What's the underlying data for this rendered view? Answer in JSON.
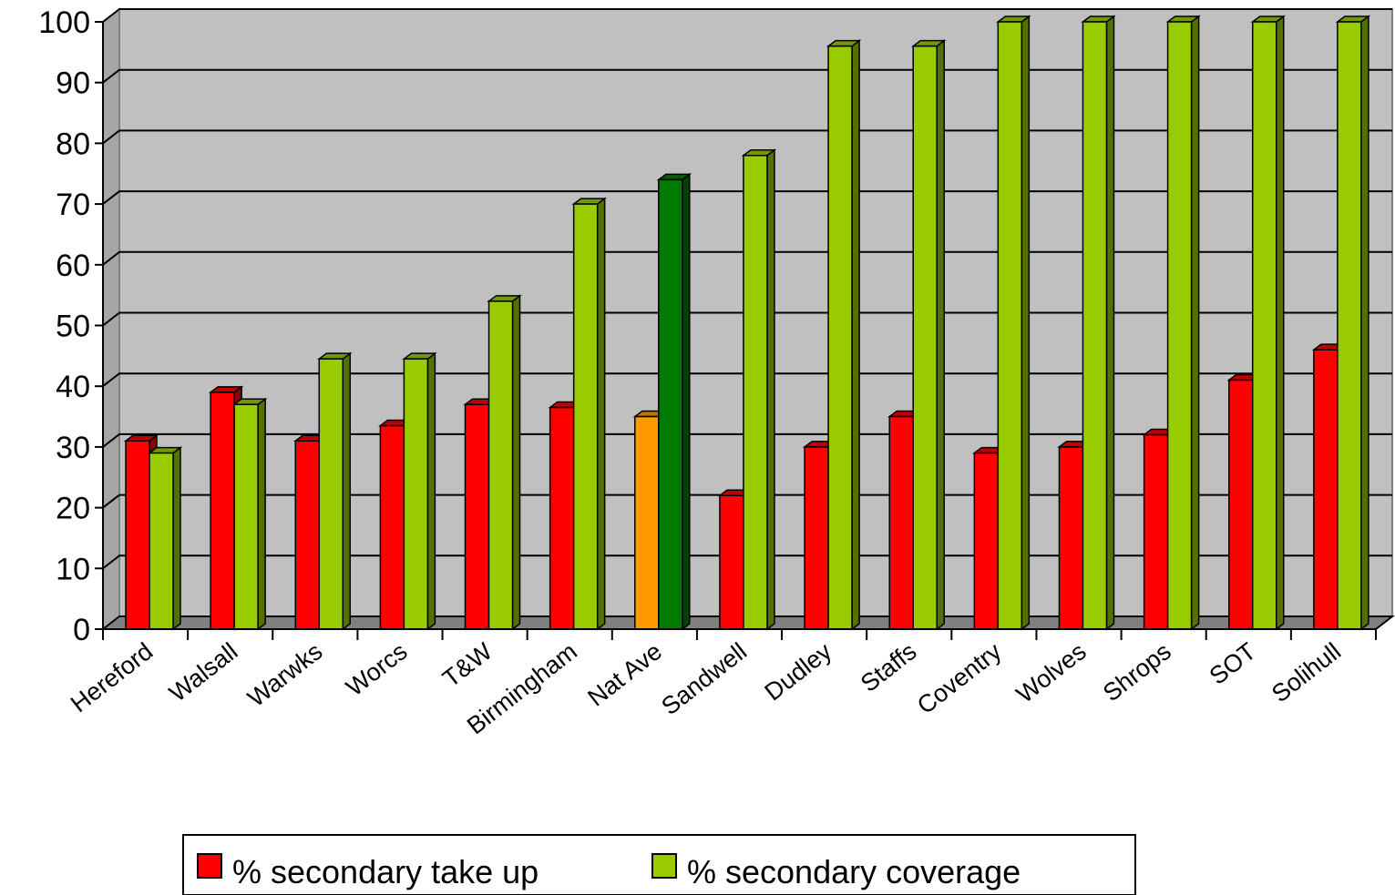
{
  "chart_data": {
    "type": "bar",
    "title": "",
    "xlabel": "",
    "ylabel": "",
    "ylim": [
      0,
      100
    ],
    "yticks": [
      0,
      10,
      20,
      30,
      40,
      50,
      60,
      70,
      80,
      90,
      100
    ],
    "grid": true,
    "legend_position": "bottom",
    "categories": [
      "Hereford",
      "Walsall",
      "Warwks",
      "Worcs",
      "T&W",
      "Birmingham",
      "Nat Ave",
      "Sandwell",
      "Dudley",
      "Staffs",
      "Coventry",
      "Wolves",
      "Shrops",
      "SOT",
      "Solihull"
    ],
    "series": [
      {
        "name": "% secondary take up",
        "color": "#ff0000",
        "values": [
          31,
          39,
          31,
          33.5,
          37,
          36.5,
          35,
          22,
          30,
          35,
          29,
          30,
          32,
          41,
          46
        ]
      },
      {
        "name": "% secondary coverage",
        "color": "#99cc00",
        "values": [
          29,
          37,
          44.5,
          44.5,
          54,
          70,
          74,
          78,
          96,
          96,
          100,
          100,
          100,
          100,
          100
        ]
      }
    ],
    "highlight": {
      "category": "Nat Ave",
      "colors": [
        "#ff9900",
        "#007a00"
      ]
    },
    "plot_background": "#c0c0c0",
    "floor_color": "#808080"
  }
}
